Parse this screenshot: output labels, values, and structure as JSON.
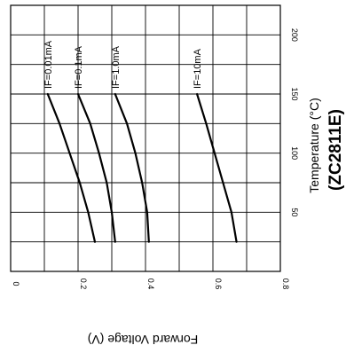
{
  "chart_data": {
    "type": "line",
    "orientation": "rotated 90 degrees clockwise (temperature axis runs vertically at right, voltage axis runs horizontally at bottom)",
    "part_number": "(ZC2811E)",
    "xlabel": "Temperature (°C)",
    "ylabel": "Forward Voltage (V)",
    "xlim": [
      0,
      225
    ],
    "ylim": [
      0,
      0.8
    ],
    "x_ticks": [
      50,
      100,
      150,
      200
    ],
    "y_ticks": [
      "0",
      "0.2",
      "0.4",
      "0.6",
      "0.8"
    ],
    "y_tick_values": [
      0,
      0.2,
      0.4,
      0.6,
      0.8
    ],
    "grid": true,
    "series": [
      {
        "name": "IF=10mA",
        "x": [
          25,
          50,
          75,
          100,
          125,
          150
        ],
        "y": [
          0.67,
          0.655,
          0.63,
          0.605,
          0.58,
          0.553
        ]
      },
      {
        "name": "IF=1.0mA",
        "x": [
          25,
          50,
          75,
          100,
          125,
          150
        ],
        "y": [
          0.41,
          0.405,
          0.39,
          0.37,
          0.345,
          0.31
        ]
      },
      {
        "name": "IF=0.1mA",
        "x": [
          25,
          50,
          75,
          100,
          125,
          150
        ],
        "y": [
          0.31,
          0.3,
          0.285,
          0.262,
          0.236,
          0.2
        ]
      },
      {
        "name": "IF=0.01mA",
        "x": [
          25,
          50,
          75,
          100,
          125,
          150
        ],
        "y": [
          0.25,
          0.23,
          0.205,
          0.175,
          0.145,
          0.11
        ]
      }
    ]
  }
}
